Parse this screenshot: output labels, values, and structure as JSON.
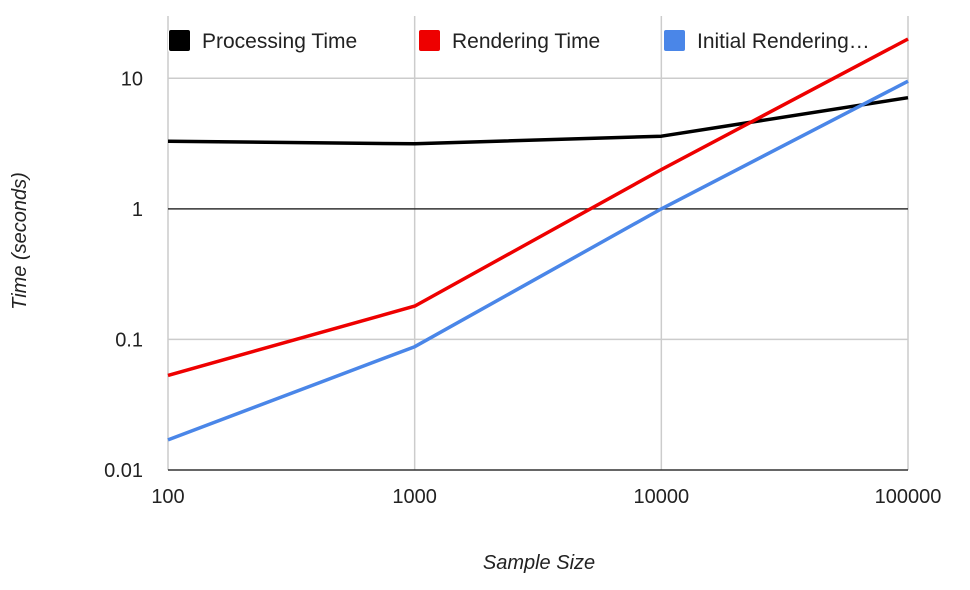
{
  "chart_data": {
    "type": "line",
    "title": "",
    "xlabel": "Sample Size",
    "ylabel": "Time (seconds)",
    "x_scale": "log",
    "y_scale": "log",
    "x": [
      100,
      1000,
      10000,
      100000
    ],
    "x_ticks": [
      "100",
      "1000",
      "10000",
      "100000"
    ],
    "y_ticks": [
      "0.01",
      "0.1",
      "1",
      "10"
    ],
    "xlim": [
      100,
      100000
    ],
    "ylim": [
      0.01,
      30
    ],
    "grid": true,
    "legend_position": "top",
    "series": [
      {
        "name": "Processing Time",
        "color": "#000000",
        "values": [
          3.3,
          3.15,
          3.6,
          7.1
        ]
      },
      {
        "name": "Rendering Time",
        "color": "#ee0000",
        "values": [
          0.053,
          0.18,
          2.0,
          20.0
        ]
      },
      {
        "name": "Initial Rendering…",
        "color": "#4a86e8",
        "values": [
          0.017,
          0.088,
          1.0,
          9.5
        ]
      }
    ]
  }
}
